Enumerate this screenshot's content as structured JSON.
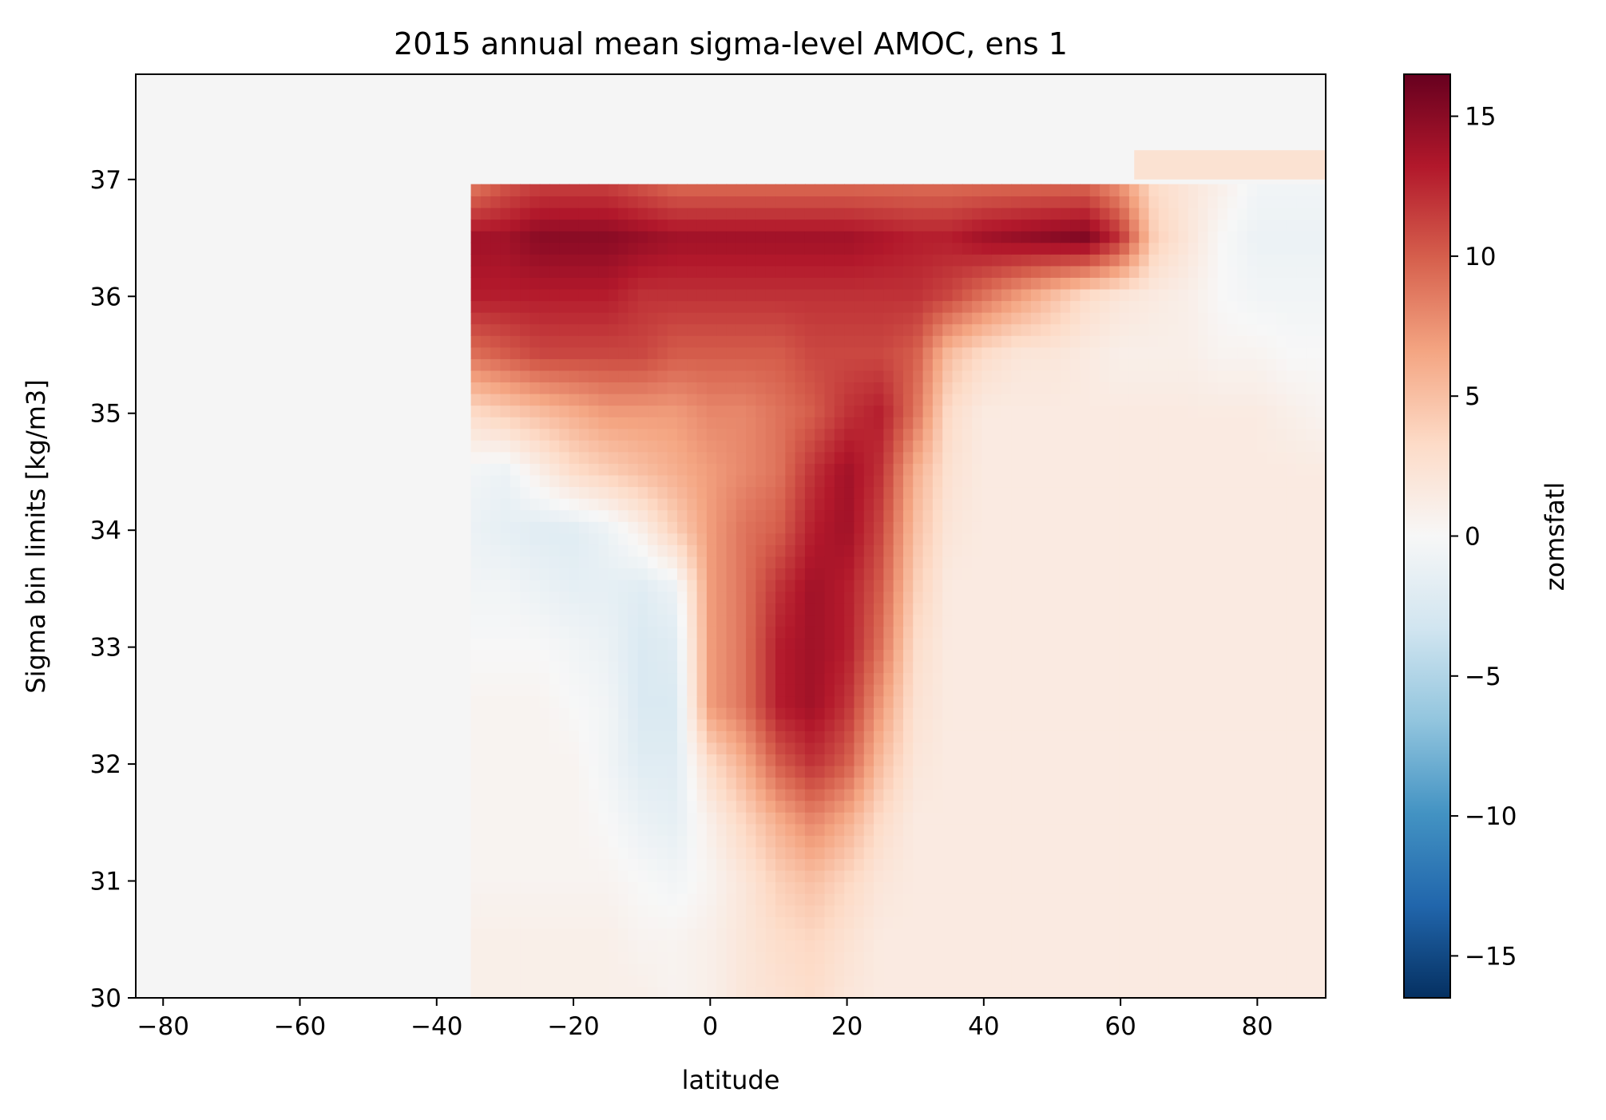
{
  "chart_data": {
    "type": "heatmap",
    "title": "2015 annual mean sigma-level AMOC, ens 1",
    "xlabel": "latitude",
    "ylabel": "Sigma bin limits [kg/m3]",
    "colorbar_label": "zomsfatl",
    "colormap": "RdBu_r",
    "background_color": "#f5f5f5",
    "xlim": [
      -84,
      90
    ],
    "ylim": [
      30,
      37.9
    ],
    "clim": [
      -16.5,
      16.5
    ],
    "xticks": [
      -80,
      -60,
      -40,
      -20,
      0,
      20,
      40,
      60,
      80
    ],
    "xtick_labels": [
      "−80",
      "−60",
      "−40",
      "−20",
      "0",
      "20",
      "40",
      "60",
      "80"
    ],
    "yticks": [
      30,
      31,
      32,
      33,
      34,
      35,
      36,
      37
    ],
    "ytick_labels": [
      "30",
      "31",
      "32",
      "33",
      "34",
      "35",
      "36",
      "37"
    ],
    "cticks": [
      -15,
      -10,
      -5,
      0,
      5,
      10,
      15
    ],
    "ctick_labels": [
      "−15",
      "−10",
      "−5",
      "0",
      "5",
      "10",
      "15"
    ],
    "grid": false,
    "lat_grid": [
      -35,
      -30,
      -25,
      -20,
      -15,
      -10,
      -5,
      0,
      5,
      10,
      15,
      20,
      25,
      30,
      35,
      40,
      45,
      50,
      55,
      60,
      65,
      70,
      75,
      80,
      85,
      90
    ],
    "sigma_grid": [
      30.0,
      30.5,
      31.0,
      31.5,
      32.0,
      32.5,
      33.0,
      33.5,
      34.0,
      34.5,
      35.0,
      35.5,
      36.0,
      36.5,
      37.0
    ],
    "values": [
      [
        1.0,
        1.0,
        1.0,
        1.0,
        1.0,
        1.0,
        0.5,
        1.0,
        2.0,
        2.5,
        3.0,
        2.0,
        1.5,
        1.5,
        1.5,
        1.5,
        1.5,
        1.5,
        1.5,
        1.5,
        1.5,
        1.5,
        1.5,
        1.5,
        1.5,
        1.5
      ],
      [
        1.0,
        1.0,
        1.0,
        1.0,
        1.0,
        0.5,
        0.5,
        1.0,
        2.0,
        3.0,
        3.5,
        2.5,
        1.5,
        1.5,
        1.5,
        1.5,
        1.5,
        1.5,
        1.5,
        1.5,
        1.5,
        1.5,
        1.5,
        1.5,
        1.5,
        1.5
      ],
      [
        0.5,
        0.5,
        0.5,
        0.5,
        0.5,
        0.0,
        -0.5,
        0.5,
        2.0,
        4.0,
        5.0,
        3.5,
        2.0,
        1.5,
        1.5,
        1.5,
        1.5,
        1.5,
        1.5,
        1.5,
        1.5,
        1.5,
        1.5,
        1.5,
        1.5,
        1.5
      ],
      [
        0.5,
        0.5,
        0.5,
        0.5,
        0.0,
        -1.0,
        -1.5,
        1.0,
        3.5,
        6.0,
        8.0,
        6.0,
        3.0,
        1.5,
        1.5,
        1.5,
        1.5,
        1.5,
        1.5,
        1.5,
        1.5,
        1.5,
        1.5,
        1.5,
        1.5,
        1.5
      ],
      [
        0.5,
        0.5,
        0.5,
        0.5,
        -0.5,
        -2.0,
        -2.0,
        3.0,
        6.0,
        10.0,
        12.0,
        10.0,
        5.0,
        2.0,
        1.5,
        1.5,
        1.5,
        1.5,
        1.5,
        1.5,
        1.5,
        1.5,
        1.5,
        1.5,
        1.5,
        1.5
      ],
      [
        0.5,
        0.5,
        0.5,
        0.0,
        -0.5,
        -2.5,
        -2.5,
        7.0,
        9.0,
        13.0,
        14.0,
        12.0,
        7.0,
        2.5,
        1.5,
        1.5,
        1.5,
        1.5,
        1.5,
        1.5,
        1.5,
        1.5,
        1.5,
        1.5,
        1.5,
        1.5
      ],
      [
        0.0,
        0.0,
        0.0,
        -0.5,
        -1.0,
        -2.5,
        -2.0,
        7.0,
        9.0,
        13.0,
        14.0,
        13.0,
        9.0,
        3.0,
        1.5,
        1.5,
        1.5,
        1.5,
        1.5,
        1.5,
        1.5,
        1.5,
        1.5,
        1.5,
        1.5,
        1.5
      ],
      [
        -0.5,
        -0.5,
        -1.0,
        -1.5,
        -1.5,
        -2.0,
        -1.0,
        7.0,
        9.0,
        12.0,
        14.0,
        13.0,
        10.0,
        4.0,
        1.5,
        1.5,
        1.5,
        1.5,
        1.5,
        1.5,
        1.5,
        1.5,
        1.5,
        1.5,
        1.5,
        1.5
      ],
      [
        -1.0,
        -1.5,
        -2.0,
        -2.0,
        -1.0,
        1.0,
        4.0,
        7.0,
        9.0,
        10.0,
        13.0,
        14.0,
        11.0,
        5.0,
        2.0,
        1.5,
        1.5,
        1.5,
        1.5,
        1.5,
        1.5,
        1.5,
        1.5,
        1.5,
        1.5,
        1.5
      ],
      [
        -0.5,
        -1.0,
        1.0,
        3.0,
        4.0,
        5.0,
        6.0,
        7.0,
        8.0,
        9.0,
        12.0,
        14.0,
        12.0,
        6.0,
        2.5,
        1.5,
        1.5,
        1.5,
        1.5,
        1.5,
        1.5,
        1.5,
        1.5,
        1.5,
        1.5,
        1.5
      ],
      [
        3.0,
        4.0,
        5.0,
        6.0,
        7.0,
        7.0,
        7.0,
        8.0,
        8.0,
        9.0,
        10.0,
        12.0,
        13.0,
        9.0,
        3.0,
        1.5,
        1.5,
        1.5,
        1.5,
        1.5,
        1.5,
        1.5,
        1.5,
        1.5,
        1.0,
        0.5
      ],
      [
        9.0,
        10.0,
        11.0,
        11.0,
        11.0,
        11.0,
        10.0,
        10.0,
        10.0,
        10.0,
        11.0,
        11.0,
        11.0,
        10.0,
        5.0,
        3.0,
        2.0,
        2.0,
        1.5,
        1.0,
        1.0,
        1.0,
        0.5,
        0.5,
        0.0,
        0.0
      ],
      [
        13.0,
        13.0,
        13.0,
        13.0,
        13.0,
        12.0,
        12.0,
        12.0,
        12.0,
        12.0,
        12.0,
        12.0,
        12.0,
        12.0,
        11.0,
        9.0,
        7.0,
        5.0,
        3.0,
        2.0,
        1.5,
        1.0,
        0.0,
        -0.5,
        -0.5,
        -0.5
      ],
      [
        14.0,
        14.0,
        15.0,
        15.0,
        15.0,
        14.5,
        14.0,
        14.0,
        14.0,
        14.0,
        14.0,
        14.0,
        13.5,
        13.0,
        13.0,
        14.0,
        14.5,
        15.0,
        15.5,
        12.0,
        4.0,
        2.0,
        0.0,
        -1.0,
        -1.0,
        -1.0
      ],
      [
        8.0,
        10.0,
        11.0,
        11.0,
        11.0,
        10.0,
        9.0,
        9.0,
        9.0,
        9.0,
        9.0,
        9.0,
        9.0,
        9.0,
        9.0,
        9.0,
        9.0,
        9.0,
        9.0,
        7.0,
        3.0,
        2.0,
        1.0,
        -0.5,
        -0.5,
        -0.5
      ]
    ],
    "extra_patches": [
      {
        "lat_range": [
          62,
          90
        ],
        "sigma_range": [
          37.0,
          37.25
        ],
        "value": 3.0
      }
    ]
  }
}
